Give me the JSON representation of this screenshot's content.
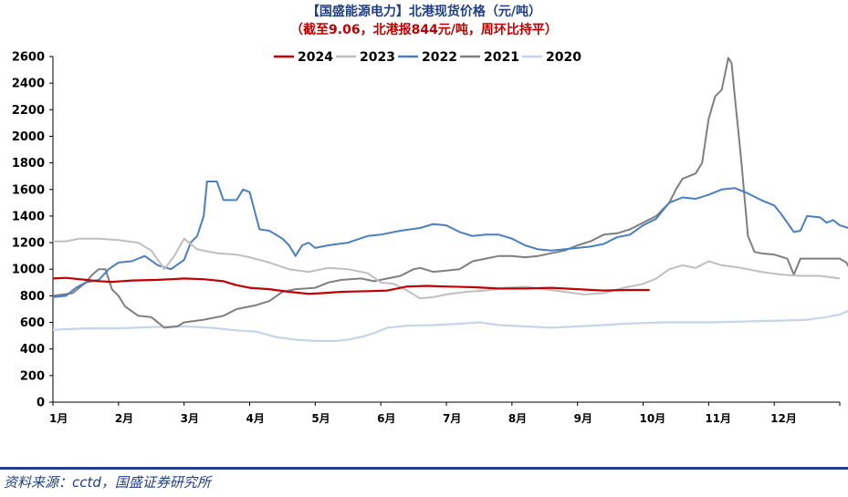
{
  "header": {
    "title": "【国盛能源电力】北港现货价格（元/吨）",
    "subtitle": "（截至9.06，北港报844元/吨，周环比持平）"
  },
  "footer": {
    "source": "资料来源：cctd，国盛证券研究所"
  },
  "colors": {
    "title": "#1f3f86",
    "subtitle": "#c00000"
  },
  "chart_data": {
    "type": "line",
    "categories": [
      "1月",
      "2月",
      "3月",
      "4月",
      "5月",
      "6月",
      "7月",
      "8月",
      "9月",
      "10月",
      "11月",
      "12月"
    ],
    "yticks": [
      0,
      200,
      400,
      600,
      800,
      1000,
      1200,
      1400,
      1600,
      1800,
      2000,
      2200,
      2400,
      2600
    ],
    "ylim": [
      0,
      2600
    ],
    "xlim": [
      0,
      12
    ],
    "legend_position": "top",
    "series": [
      {
        "name": "2024",
        "color": "#c00000",
        "width": 2.2,
        "points": [
          [
            0,
            930
          ],
          [
            0.2,
            935
          ],
          [
            0.5,
            920
          ],
          [
            0.7,
            910
          ],
          [
            0.9,
            905
          ],
          [
            1.2,
            915
          ],
          [
            1.6,
            920
          ],
          [
            1.8,
            925
          ],
          [
            2.0,
            930
          ],
          [
            2.3,
            925
          ],
          [
            2.6,
            910
          ],
          [
            2.8,
            880
          ],
          [
            3.0,
            860
          ],
          [
            3.3,
            850
          ],
          [
            3.6,
            830
          ],
          [
            3.9,
            815
          ],
          [
            4.1,
            820
          ],
          [
            4.4,
            830
          ],
          [
            4.8,
            835
          ],
          [
            5.1,
            840
          ],
          [
            5.4,
            870
          ],
          [
            5.7,
            875
          ],
          [
            6.0,
            870
          ],
          [
            6.4,
            865
          ],
          [
            6.8,
            855
          ],
          [
            7.2,
            855
          ],
          [
            7.6,
            860
          ],
          [
            8.0,
            850
          ],
          [
            8.4,
            840
          ],
          [
            8.75,
            844
          ],
          [
            9.1,
            844
          ]
        ]
      },
      {
        "name": "2023",
        "color": "#bfbfbf",
        "width": 2,
        "points": [
          [
            0,
            1210
          ],
          [
            0.2,
            1210
          ],
          [
            0.4,
            1230
          ],
          [
            0.7,
            1230
          ],
          [
            1.0,
            1220
          ],
          [
            1.3,
            1200
          ],
          [
            1.5,
            1140
          ],
          [
            1.7,
            1000
          ],
          [
            1.85,
            1100
          ],
          [
            2.0,
            1230
          ],
          [
            2.2,
            1150
          ],
          [
            2.5,
            1120
          ],
          [
            2.8,
            1110
          ],
          [
            3.0,
            1090
          ],
          [
            3.3,
            1050
          ],
          [
            3.6,
            1000
          ],
          [
            3.9,
            980
          ],
          [
            4.2,
            1010
          ],
          [
            4.5,
            1000
          ],
          [
            4.8,
            970
          ],
          [
            5.0,
            900
          ],
          [
            5.2,
            890
          ],
          [
            5.4,
            840
          ],
          [
            5.6,
            780
          ],
          [
            5.8,
            790
          ],
          [
            6.0,
            810
          ],
          [
            6.3,
            830
          ],
          [
            6.6,
            840
          ],
          [
            6.9,
            860
          ],
          [
            7.2,
            870
          ],
          [
            7.5,
            850
          ],
          [
            7.8,
            830
          ],
          [
            8.1,
            810
          ],
          [
            8.4,
            820
          ],
          [
            8.7,
            860
          ],
          [
            9.0,
            890
          ],
          [
            9.2,
            930
          ],
          [
            9.4,
            1000
          ],
          [
            9.6,
            1030
          ],
          [
            9.8,
            1010
          ],
          [
            10.0,
            1060
          ],
          [
            10.2,
            1030
          ],
          [
            10.5,
            1010
          ],
          [
            10.8,
            980
          ],
          [
            11.1,
            960
          ],
          [
            11.4,
            950
          ],
          [
            11.7,
            950
          ],
          [
            12.0,
            930
          ]
        ]
      },
      {
        "name": "2022",
        "color": "#4a7fc1",
        "width": 2,
        "points": [
          [
            0,
            790
          ],
          [
            0.2,
            800
          ],
          [
            0.35,
            860
          ],
          [
            0.5,
            900
          ],
          [
            0.7,
            920
          ],
          [
            0.85,
            1000
          ],
          [
            1.0,
            1050
          ],
          [
            1.2,
            1060
          ],
          [
            1.4,
            1100
          ],
          [
            1.6,
            1030
          ],
          [
            1.8,
            1000
          ],
          [
            2.0,
            1070
          ],
          [
            2.1,
            1200
          ],
          [
            2.2,
            1250
          ],
          [
            2.3,
            1400
          ],
          [
            2.35,
            1660
          ],
          [
            2.5,
            1660
          ],
          [
            2.6,
            1520
          ],
          [
            2.8,
            1520
          ],
          [
            2.9,
            1600
          ],
          [
            3.0,
            1580
          ],
          [
            3.15,
            1300
          ],
          [
            3.3,
            1290
          ],
          [
            3.5,
            1230
          ],
          [
            3.6,
            1180
          ],
          [
            3.7,
            1100
          ],
          [
            3.8,
            1180
          ],
          [
            3.9,
            1200
          ],
          [
            4.0,
            1160
          ],
          [
            4.2,
            1180
          ],
          [
            4.5,
            1200
          ],
          [
            4.8,
            1250
          ],
          [
            5.0,
            1260
          ],
          [
            5.3,
            1290
          ],
          [
            5.6,
            1310
          ],
          [
            5.8,
            1340
          ],
          [
            6.0,
            1330
          ],
          [
            6.2,
            1280
          ],
          [
            6.4,
            1250
          ],
          [
            6.6,
            1260
          ],
          [
            6.8,
            1260
          ],
          [
            7.0,
            1230
          ],
          [
            7.2,
            1180
          ],
          [
            7.4,
            1150
          ],
          [
            7.6,
            1140
          ],
          [
            7.8,
            1150
          ],
          [
            8.0,
            1160
          ],
          [
            8.2,
            1170
          ],
          [
            8.4,
            1190
          ],
          [
            8.6,
            1240
          ],
          [
            8.8,
            1260
          ],
          [
            9.0,
            1330
          ],
          [
            9.2,
            1380
          ],
          [
            9.4,
            1500
          ],
          [
            9.6,
            1540
          ],
          [
            9.8,
            1530
          ],
          [
            10.0,
            1560
          ],
          [
            10.2,
            1600
          ],
          [
            10.4,
            1610
          ],
          [
            10.6,
            1570
          ],
          [
            10.8,
            1520
          ],
          [
            11.0,
            1480
          ],
          [
            11.1,
            1420
          ],
          [
            11.2,
            1350
          ],
          [
            11.3,
            1280
          ],
          [
            11.4,
            1290
          ],
          [
            11.5,
            1400
          ],
          [
            11.7,
            1390
          ],
          [
            11.8,
            1350
          ],
          [
            11.9,
            1370
          ],
          [
            12.0,
            1330
          ],
          [
            12.2,
            1300
          ],
          [
            12.4,
            1220
          ]
        ]
      },
      {
        "name": "2021",
        "color": "#7f7f7f",
        "width": 2,
        "points": [
          [
            0,
            800
          ],
          [
            0.3,
            820
          ],
          [
            0.5,
            900
          ],
          [
            0.6,
            960
          ],
          [
            0.7,
            1000
          ],
          [
            0.8,
            1000
          ],
          [
            0.9,
            850
          ],
          [
            1.0,
            800
          ],
          [
            1.1,
            720
          ],
          [
            1.3,
            650
          ],
          [
            1.5,
            640
          ],
          [
            1.7,
            560
          ],
          [
            1.9,
            570
          ],
          [
            2.0,
            600
          ],
          [
            2.3,
            620
          ],
          [
            2.6,
            650
          ],
          [
            2.8,
            700
          ],
          [
            3.1,
            730
          ],
          [
            3.3,
            760
          ],
          [
            3.5,
            830
          ],
          [
            3.7,
            850
          ],
          [
            4.0,
            860
          ],
          [
            4.2,
            900
          ],
          [
            4.4,
            920
          ],
          [
            4.7,
            930
          ],
          [
            4.9,
            910
          ],
          [
            5.1,
            930
          ],
          [
            5.3,
            950
          ],
          [
            5.5,
            1000
          ],
          [
            5.6,
            1010
          ],
          [
            5.8,
            980
          ],
          [
            6.0,
            990
          ],
          [
            6.2,
            1000
          ],
          [
            6.4,
            1060
          ],
          [
            6.6,
            1080
          ],
          [
            6.8,
            1100
          ],
          [
            7.0,
            1100
          ],
          [
            7.2,
            1090
          ],
          [
            7.4,
            1100
          ],
          [
            7.6,
            1120
          ],
          [
            7.8,
            1140
          ],
          [
            8.0,
            1180
          ],
          [
            8.2,
            1210
          ],
          [
            8.4,
            1260
          ],
          [
            8.6,
            1270
          ],
          [
            8.8,
            1300
          ],
          [
            9.0,
            1350
          ],
          [
            9.2,
            1400
          ],
          [
            9.4,
            1500
          ],
          [
            9.5,
            1600
          ],
          [
            9.6,
            1680
          ],
          [
            9.7,
            1700
          ],
          [
            9.8,
            1720
          ],
          [
            9.9,
            1800
          ],
          [
            10.0,
            2130
          ],
          [
            10.1,
            2300
          ],
          [
            10.2,
            2350
          ],
          [
            10.3,
            2590
          ],
          [
            10.35,
            2550
          ],
          [
            10.4,
            2290
          ],
          [
            10.45,
            2050
          ],
          [
            10.5,
            1800
          ],
          [
            10.6,
            1250
          ],
          [
            10.7,
            1130
          ],
          [
            10.8,
            1120
          ],
          [
            11.0,
            1110
          ],
          [
            11.2,
            1080
          ],
          [
            11.3,
            960
          ],
          [
            11.4,
            1080
          ],
          [
            11.6,
            1080
          ],
          [
            11.8,
            1080
          ],
          [
            12.0,
            1080
          ],
          [
            12.1,
            1050
          ],
          [
            12.2,
            960
          ],
          [
            12.3,
            940
          ],
          [
            12.5,
            800
          ]
        ]
      },
      {
        "name": "2020",
        "color": "#c5d5eb",
        "width": 2.2,
        "points": [
          [
            0,
            545
          ],
          [
            0.5,
            555
          ],
          [
            1.0,
            555
          ],
          [
            1.5,
            565
          ],
          [
            2.0,
            570
          ],
          [
            2.4,
            560
          ],
          [
            2.8,
            540
          ],
          [
            3.1,
            530
          ],
          [
            3.4,
            490
          ],
          [
            3.7,
            470
          ],
          [
            4.0,
            460
          ],
          [
            4.3,
            460
          ],
          [
            4.5,
            470
          ],
          [
            4.7,
            490
          ],
          [
            4.9,
            520
          ],
          [
            5.1,
            560
          ],
          [
            5.4,
            575
          ],
          [
            5.8,
            580
          ],
          [
            6.2,
            590
          ],
          [
            6.5,
            600
          ],
          [
            6.8,
            580
          ],
          [
            7.2,
            570
          ],
          [
            7.6,
            560
          ],
          [
            8.0,
            570
          ],
          [
            8.4,
            580
          ],
          [
            8.7,
            590
          ],
          [
            9.0,
            595
          ],
          [
            9.3,
            600
          ],
          [
            9.6,
            600
          ],
          [
            10.0,
            600
          ],
          [
            10.4,
            605
          ],
          [
            10.8,
            610
          ],
          [
            11.2,
            615
          ],
          [
            11.5,
            620
          ],
          [
            11.8,
            640
          ],
          [
            12.0,
            660
          ],
          [
            12.2,
            700
          ],
          [
            12.4,
            760
          ],
          [
            12.5,
            800
          ]
        ]
      }
    ]
  }
}
